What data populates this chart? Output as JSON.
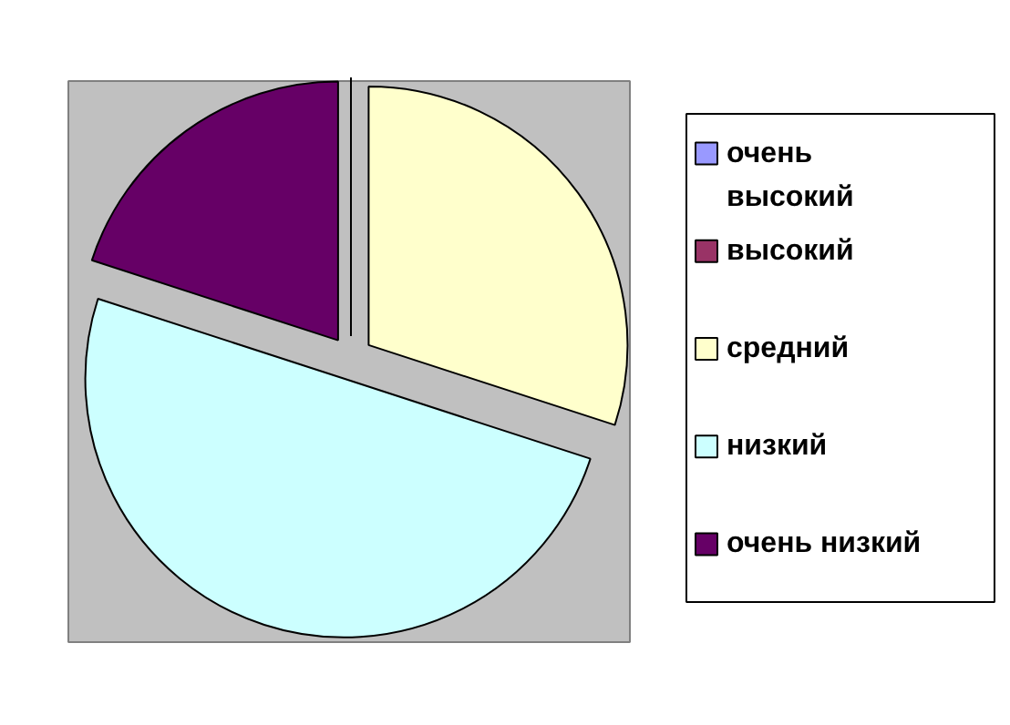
{
  "chart_data": {
    "type": "pie",
    "categories": [
      "очень высокий",
      "высокий",
      "средний",
      "низкий",
      "очень низкий"
    ],
    "values": [
      0,
      0,
      30,
      50,
      20
    ],
    "colors": [
      "#9999ff",
      "#993366",
      "#ffffcc",
      "#ccffff",
      "#660066"
    ],
    "legend": "right"
  }
}
